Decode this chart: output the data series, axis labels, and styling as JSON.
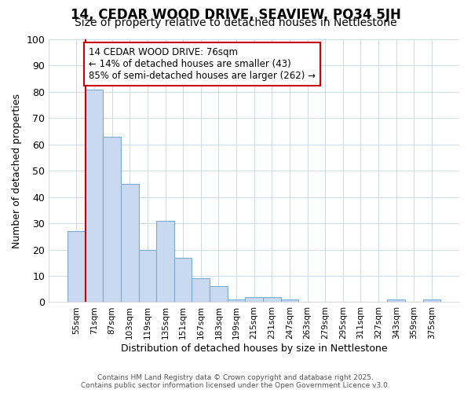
{
  "title": "14, CEDAR WOOD DRIVE, SEAVIEW, PO34 5JH",
  "subtitle": "Size of property relative to detached houses in Nettlestone",
  "xlabel": "Distribution of detached houses by size in Nettlestone",
  "ylabel": "Number of detached properties",
  "categories": [
    "55sqm",
    "71sqm",
    "87sqm",
    "103sqm",
    "119sqm",
    "135sqm",
    "151sqm",
    "167sqm",
    "183sqm",
    "199sqm",
    "215sqm",
    "231sqm",
    "247sqm",
    "263sqm",
    "279sqm",
    "295sqm",
    "311sqm",
    "327sqm",
    "343sqm",
    "359sqm",
    "375sqm"
  ],
  "values": [
    27,
    81,
    63,
    45,
    20,
    31,
    17,
    9,
    6,
    1,
    2,
    2,
    1,
    0,
    0,
    0,
    0,
    0,
    1,
    0,
    1
  ],
  "bar_color": "#c8d9f0",
  "bar_edge_color": "#7aacd6",
  "red_line_x": 1.0,
  "annotation_text": "14 CEDAR WOOD DRIVE: 76sqm\n← 14% of detached houses are smaller (43)\n85% of semi-detached houses are larger (262) →",
  "annotation_box_color": "#ffffff",
  "annotation_box_edge": "#cc0000",
  "vline_color": "#cc0000",
  "ylim": [
    0,
    100
  ],
  "yticks": [
    0,
    10,
    20,
    30,
    40,
    50,
    60,
    70,
    80,
    90,
    100
  ],
  "background_color": "#ffffff",
  "grid_color": "#d0dce8",
  "footer": "Contains HM Land Registry data © Crown copyright and database right 2025.\nContains public sector information licensed under the Open Government Licence v3.0.",
  "title_fontsize": 12,
  "subtitle_fontsize": 10,
  "xlabel_fontsize": 9,
  "ylabel_fontsize": 9,
  "annotation_fontsize": 8.5
}
